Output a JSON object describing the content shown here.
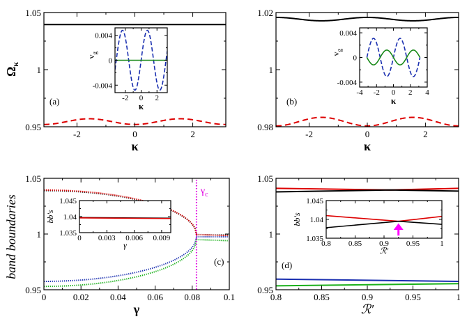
{
  "chart_data": [
    {
      "id": "a",
      "type": "line",
      "panel_label": "(a)",
      "xlabel": "κ",
      "ylabel_main": "Ω",
      "ylabel_sub": "κ",
      "xlim": [
        -3.14159,
        3.14159
      ],
      "ylim": [
        0.95,
        1.05
      ],
      "xticks": [
        -2,
        0,
        2
      ],
      "xtick_labels": [
        "-2",
        "0",
        "2"
      ],
      "yticks": [
        0.95,
        1,
        1.05
      ],
      "ytick_labels": [
        "0.95",
        "1",
        "1.05"
      ],
      "series": [
        {
          "name": "upper band",
          "color": "#000000",
          "dash": "solid",
          "kind": "cos",
          "offset": 1.0395,
          "amp": 0,
          "freq": 2,
          "phase": 0
        },
        {
          "name": "lower band",
          "color": "#dd0000",
          "dash": "dashed",
          "kind": "cos",
          "offset": 0.9545,
          "amp": -0.0025,
          "freq": 2,
          "phase": 0
        }
      ],
      "inset": {
        "xlabel": "κ",
        "ylabel_main": "v",
        "ylabel_sub": "g",
        "xlim": [
          -3.3,
          3.3
        ],
        "ylim": [
          -0.0052,
          0.0052
        ],
        "xticks": [
          -2,
          0,
          2
        ],
        "xtick_labels": [
          "-2",
          "0",
          "2"
        ],
        "yticks": [
          -0.004,
          0,
          0.004
        ],
        "ytick_labels": [
          "-0.004",
          "0",
          "0.004"
        ],
        "series": [
          {
            "name": "v_g lower",
            "color": "#1a2fb0",
            "dash": "dashed",
            "kind": "sin",
            "offset": 0,
            "amp": 0.0048,
            "freq": 2,
            "phase": 0,
            "x_range": [
              -3.3,
              3.3
            ]
          },
          {
            "name": "v_g upper",
            "color": "#1a8a1a",
            "dash": "solid",
            "kind": "sin",
            "offset": 0,
            "amp": 0,
            "freq": 2,
            "phase": 0,
            "x_range": [
              -3.3,
              3.3
            ]
          }
        ]
      }
    },
    {
      "id": "b",
      "type": "line",
      "panel_label": "(b)",
      "xlabel": "κ",
      "xlim": [
        -3.14159,
        3.14159
      ],
      "ylim": [
        0.98,
        1.02
      ],
      "xticks": [
        -2,
        0,
        2
      ],
      "xtick_labels": [
        "-2",
        "0",
        "2"
      ],
      "yticks": [
        0.98,
        1,
        1.02
      ],
      "ytick_labels": [
        "0.98",
        "1",
        "1.02"
      ],
      "series": [
        {
          "name": "upper band",
          "color": "#000000",
          "dash": "solid",
          "kind": "cos",
          "offset": 1.0177,
          "amp": 0.0006,
          "freq": 2,
          "phase": 0
        },
        {
          "name": "lower band",
          "color": "#dd0000",
          "dash": "dashed",
          "kind": "cos",
          "offset": 0.9818,
          "amp": -0.0015,
          "freq": 2,
          "phase": 0
        }
      ],
      "inset": {
        "xlabel": "κ",
        "ylabel_main": "v",
        "ylabel_sub": "g",
        "xlim": [
          -4,
          4
        ],
        "ylim": [
          -0.0048,
          0.0048
        ],
        "xticks": [
          -4,
          -2,
          0,
          2,
          4
        ],
        "xtick_labels": [
          "-4",
          "-2",
          "0",
          "2",
          "4"
        ],
        "yticks": [
          -0.004,
          0,
          0.004
        ],
        "ytick_labels": [
          "-0.004",
          "0",
          "0.004"
        ],
        "series": [
          {
            "name": "v_g lower",
            "color": "#1a2fb0",
            "dash": "dashed",
            "kind": "sin",
            "offset": 0,
            "amp": 0.0031,
            "freq": 2,
            "phase": 0,
            "x_range": [
              -3.14,
              3.14
            ]
          },
          {
            "name": "v_g upper",
            "color": "#1a8a1a",
            "dash": "solid",
            "kind": "sin",
            "offset": 0,
            "amp": -0.0012,
            "freq": 2,
            "phase": 0,
            "x_range": [
              -3.14,
              3.14
            ]
          }
        ]
      }
    },
    {
      "id": "c",
      "type": "line",
      "panel_label": "(c)",
      "xlabel": "γ",
      "ylabel": "band boundaries",
      "xlim": [
        0,
        0.1
      ],
      "ylim": [
        0.95,
        1.05
      ],
      "xticks": [
        0,
        0.02,
        0.04,
        0.06,
        0.08,
        0.1
      ],
      "xtick_labels": [
        "0",
        "0.02",
        "0.04",
        "0.06",
        "0.08",
        "0.1"
      ],
      "yticks": [
        0.95,
        1,
        1.05
      ],
      "ytick_labels": [
        "0.95",
        "1",
        "1.05"
      ],
      "annotation": {
        "text_main": "γ",
        "text_sub": "c",
        "x": 0.0823
      },
      "series": [
        {
          "name": "black",
          "color": "#000000",
          "dash": "dotted",
          "kind": "sqrt",
          "y0": 1.039,
          "yc": 0.9995,
          "gc": 0.0823,
          "tail": [
            [
              0.0823,
              0.9995
            ],
            [
              0.1,
              0.999
            ]
          ]
        },
        {
          "name": "red",
          "color": "#dd0000",
          "dash": "dotted",
          "kind": "sqrt",
          "y0": 1.0395,
          "yc": 0.9995,
          "gc": 0.0823,
          "tail": [
            [
              0.0823,
              0.9995
            ],
            [
              0.1,
              0.9985
            ]
          ]
        },
        {
          "name": "blue",
          "color": "#1a2fb0",
          "dash": "dotted",
          "kind": "sqrt",
          "y0": 0.9575,
          "yc": 0.9975,
          "gc": 0.0823,
          "tail": [
            [
              0.0823,
              0.9975
            ],
            [
              0.1,
              0.9975
            ]
          ]
        },
        {
          "name": "green",
          "color": "#1ab01a",
          "dash": "dotted",
          "kind": "sqrt",
          "y0": 0.953,
          "yc": 0.995,
          "gc": 0.0823,
          "tail": [
            [
              0.0823,
              0.995
            ],
            [
              0.1,
              0.994
            ]
          ]
        }
      ],
      "inset": {
        "xlabel": "γ",
        "ylabel": "bb's",
        "xlim": [
          0,
          0.01
        ],
        "ylim": [
          1.035,
          1.045
        ],
        "xticks": [
          0,
          0.003,
          0.006,
          0.009
        ],
        "xtick_labels": [
          "0",
          "0.003",
          "0.006",
          "0.009"
        ],
        "yticks": [
          1.035,
          1.04,
          1.045
        ],
        "ytick_labels": [
          "1.035",
          "1.04",
          "1.045"
        ],
        "series": [
          {
            "name": "black",
            "color": "#000000",
            "dash": "solid",
            "kind": "pts",
            "points": [
              [
                0,
                1.0397
              ],
              [
                0.01,
                1.0395
              ]
            ]
          },
          {
            "name": "red",
            "color": "#dd0000",
            "dash": "solid",
            "kind": "pts",
            "points": [
              [
                0,
                1.0396
              ],
              [
                0.01,
                1.0394
              ]
            ]
          }
        ]
      }
    },
    {
      "id": "d",
      "type": "line",
      "panel_label": "(d)",
      "xlabel": "ℛ′",
      "xlim": [
        0.8,
        1
      ],
      "ylim": [
        0.95,
        1.05
      ],
      "xticks": [
        0.8,
        0.85,
        0.9,
        0.95,
        1
      ],
      "xtick_labels": [
        "0.8",
        "0.85",
        "0.9",
        "0.95",
        "1"
      ],
      "yticks": [
        0.95,
        1,
        1.05
      ],
      "ytick_labels": [
        "0.95",
        "1",
        "1.05"
      ],
      "series": [
        {
          "name": "red",
          "color": "#dd0000",
          "dash": "solid",
          "kind": "pts",
          "points": [
            [
              0.8,
              1.041
            ],
            [
              0.925,
              1.0395
            ],
            [
              1,
              1.041
            ]
          ]
        },
        {
          "name": "black",
          "color": "#000000",
          "dash": "solid",
          "kind": "pts",
          "points": [
            [
              0.8,
              1.0378
            ],
            [
              0.925,
              1.0395
            ],
            [
              1,
              1.0385
            ]
          ]
        },
        {
          "name": "blue",
          "color": "#1a2fb0",
          "dash": "solid",
          "kind": "pts",
          "points": [
            [
              0.8,
              0.9595
            ],
            [
              1,
              0.9575
            ]
          ]
        },
        {
          "name": "green",
          "color": "#1ab01a",
          "dash": "solid",
          "kind": "pts",
          "points": [
            [
              0.8,
              0.9535
            ],
            [
              1,
              0.9555
            ]
          ]
        }
      ],
      "inset": {
        "xlabel": "ℛ′",
        "ylabel": "bb's",
        "xlim": [
          0.8,
          1
        ],
        "ylim": [
          1.035,
          1.045
        ],
        "xticks": [
          0.8,
          0.85,
          0.9,
          0.95,
          1
        ],
        "xtick_labels": [
          "0.8",
          "0.85",
          "0.9",
          "0.95",
          "1"
        ],
        "yticks": [
          1.035,
          1.04,
          1.045
        ],
        "ytick_labels": [
          "1.035",
          "1.04",
          "1.045"
        ],
        "arrow_at": {
          "x": 0.925,
          "y_from": 1.0357,
          "y_to": 1.0388,
          "color": "#ff00ff"
        },
        "series": [
          {
            "name": "red",
            "color": "#dd0000",
            "dash": "solid",
            "kind": "pts",
            "points": [
              [
                0.8,
                1.041
              ],
              [
                0.925,
                1.0395
              ],
              [
                1,
                1.0408
              ]
            ]
          },
          {
            "name": "black",
            "color": "#000000",
            "dash": "solid",
            "kind": "pts",
            "points": [
              [
                0.8,
                1.0378
              ],
              [
                0.925,
                1.0395
              ],
              [
                1,
                1.0387
              ]
            ]
          }
        ]
      }
    }
  ]
}
